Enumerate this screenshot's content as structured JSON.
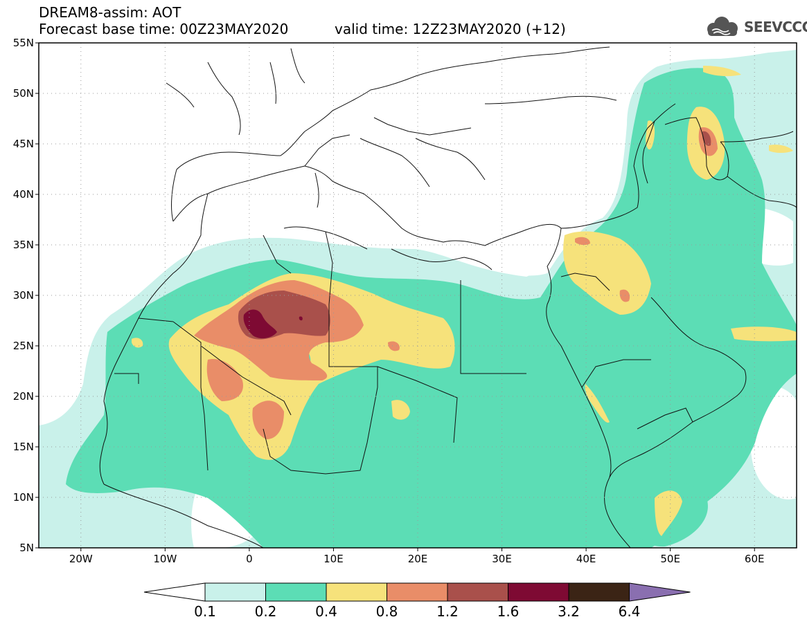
{
  "title": {
    "line1": "DREAM8-assim: AOT",
    "line2": "Forecast base time: 00Z23MAY2020",
    "valid": "valid time: 12Z23MAY2020 (+12)"
  },
  "logo": {
    "text": "SEEVCCC"
  },
  "map": {
    "lon_range": [
      -25,
      65
    ],
    "lat_range": [
      5,
      55
    ],
    "lat_ticks": [
      {
        "value": 55,
        "label": "55N"
      },
      {
        "value": 50,
        "label": "50N"
      },
      {
        "value": 45,
        "label": "45N"
      },
      {
        "value": 40,
        "label": "40N"
      },
      {
        "value": 35,
        "label": "35N"
      },
      {
        "value": 30,
        "label": "30N"
      },
      {
        "value": 25,
        "label": "25N"
      },
      {
        "value": 20,
        "label": "20N"
      },
      {
        "value": 15,
        "label": "15N"
      },
      {
        "value": 10,
        "label": "10N"
      },
      {
        "value": 5,
        "label": "5N"
      }
    ],
    "lon_ticks": [
      {
        "value": -20,
        "label": "20W"
      },
      {
        "value": -10,
        "label": "10W"
      },
      {
        "value": 0,
        "label": "0"
      },
      {
        "value": 10,
        "label": "10E"
      },
      {
        "value": 20,
        "label": "20E"
      },
      {
        "value": 30,
        "label": "30E"
      },
      {
        "value": 40,
        "label": "40E"
      },
      {
        "value": 50,
        "label": "50E"
      },
      {
        "value": 60,
        "label": "60E"
      }
    ],
    "grid": true
  },
  "colorbar": {
    "labels": [
      "0.1",
      "0.2",
      "0.4",
      "0.8",
      "1.2",
      "1.6",
      "3.2",
      "6.4"
    ],
    "colors": {
      "under": "#ffffff",
      "c1": "#c9f1ea",
      "c2": "#5cddb5",
      "c3": "#f6e27b",
      "c4": "#e98d68",
      "c5": "#a9504b",
      "c6": "#7e0a33",
      "c7": "#3b2415",
      "over": "#8a6fb0"
    }
  }
}
